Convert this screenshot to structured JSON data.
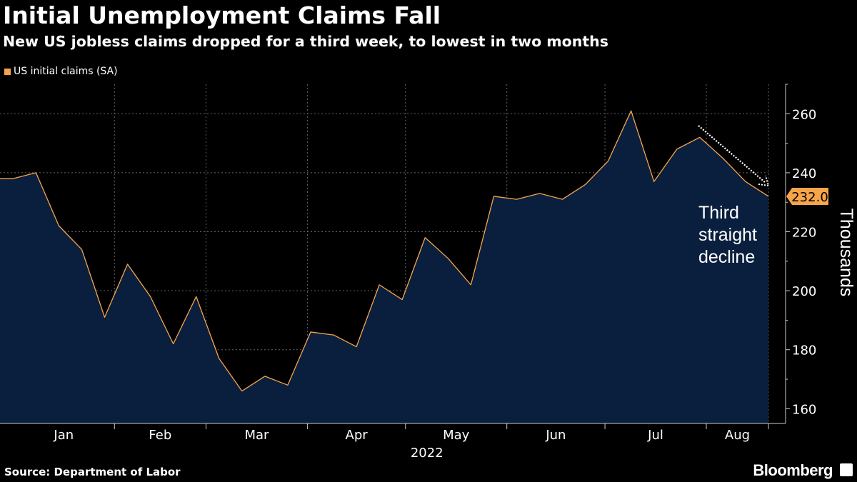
{
  "header": {
    "title": "Initial Unemployment Claims Fall",
    "subtitle": "New US jobless claims dropped for a third week, to lowest in two months"
  },
  "legend": {
    "label": "US initial claims (SA)"
  },
  "footer": {
    "source": "Source: Department of Labor",
    "brand": "Bloomberg"
  },
  "colors": {
    "background": "#000000",
    "area_fill": "#0a1f3d",
    "line": "#f7a54a",
    "grid": "#666666",
    "text": "#ffffff",
    "last_value_badge": "#f7a54a"
  },
  "chart_data": {
    "type": "area",
    "title": "Initial Unemployment Claims Fall",
    "subtitle": "New US jobless claims dropped for a third week, to lowest in two months",
    "xlabel": "2022",
    "ylabel": "Thousands",
    "ylim": [
      155,
      270
    ],
    "yticks": [
      160,
      180,
      200,
      220,
      240,
      260
    ],
    "ytick_labels": [
      "160",
      "180",
      "200",
      "220",
      "240",
      "260"
    ],
    "x_months": [
      "Jan",
      "Feb",
      "Mar",
      "Apr",
      "May",
      "Jun",
      "Jul",
      "Aug"
    ],
    "year_label": "2022",
    "grid": true,
    "legend_position": "top-left",
    "y_axis_side": "right",
    "series": [
      {
        "name": "US initial claims (SA)",
        "x": [
          "2022-01-01",
          "2022-01-08",
          "2022-01-15",
          "2022-01-22",
          "2022-01-29",
          "2022-02-05",
          "2022-02-12",
          "2022-02-19",
          "2022-02-26",
          "2022-03-05",
          "2022-03-12",
          "2022-03-19",
          "2022-03-26",
          "2022-04-02",
          "2022-04-09",
          "2022-04-16",
          "2022-04-23",
          "2022-04-30",
          "2022-05-07",
          "2022-05-14",
          "2022-05-21",
          "2022-05-28",
          "2022-06-04",
          "2022-06-11",
          "2022-06-18",
          "2022-06-25",
          "2022-07-02",
          "2022-07-09",
          "2022-07-16",
          "2022-07-23",
          "2022-07-30",
          "2022-08-06",
          "2022-08-13",
          "2022-08-20"
        ],
        "values": [
          238,
          240,
          222,
          214,
          191,
          209,
          198,
          182,
          198,
          177,
          166,
          171,
          168,
          186,
          185,
          181,
          202,
          197,
          218,
          211,
          202,
          232,
          231,
          233,
          231,
          236,
          244,
          261,
          237,
          248,
          252,
          245,
          237,
          232
        ]
      }
    ],
    "last_value_label": "232.0",
    "annotations": [
      {
        "text_lines": [
          "Third",
          "straight",
          "decline"
        ]
      }
    ]
  }
}
